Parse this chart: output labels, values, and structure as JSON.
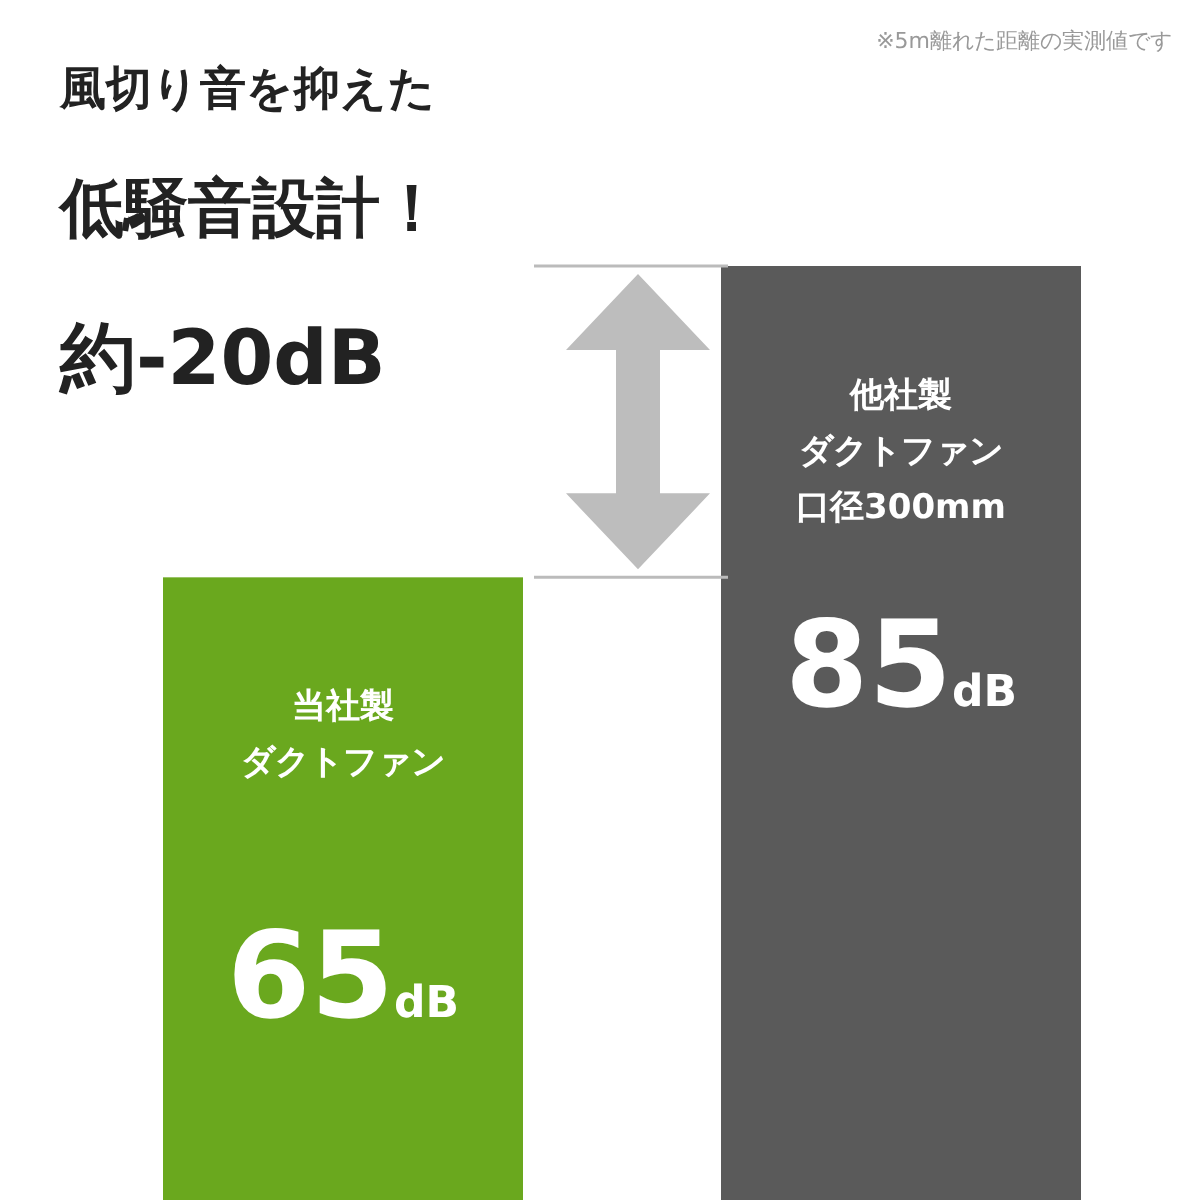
{
  "chart_data": {
    "type": "bar",
    "title": "風切り音を抑えた",
    "subtitle": "低騒音設計！",
    "categories": [
      "当社製ダクトファン",
      "他社製ダクトファン口径300mm"
    ],
    "values": [
      65,
      85
    ],
    "colors": [
      "#6aa81e",
      "#5a5a5a"
    ],
    "value_labels": [
      "65dB",
      "85dB"
    ],
    "ylim": [
      25,
      85
    ],
    "annotations": [
      "約-20dB",
      "※5m離れた距離の実測値です"
    ]
  }
}
